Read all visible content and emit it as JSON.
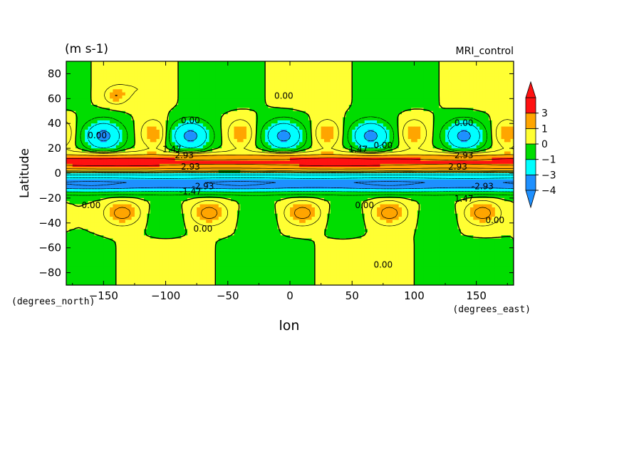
{
  "chart_data": {
    "type": "heatmap",
    "title": "",
    "units_label": "(m s-1)",
    "experiment_label": "MRI_control",
    "xlabel": "lon",
    "ylabel": "Latitude",
    "x_units": "(degrees_east)",
    "y_units": "(degrees_north)",
    "xlim": [
      -180,
      180
    ],
    "ylim": [
      -90,
      90
    ],
    "x_ticks": [
      -150,
      -100,
      -50,
      0,
      50,
      100,
      150
    ],
    "y_ticks": [
      -80,
      -60,
      -40,
      -20,
      0,
      20,
      40,
      60,
      80
    ],
    "x_tick_labels": [
      "−150",
      "−100",
      "−50",
      "0",
      "50",
      "100",
      "150"
    ],
    "y_tick_labels": [
      "−80",
      "−60",
      "−40",
      "−20",
      "0",
      "20",
      "40",
      "60",
      "80"
    ],
    "colorbar": {
      "levels": [
        -4,
        -3,
        -1,
        0,
        1,
        3
      ],
      "level_labels": [
        "−4",
        "−3",
        "−1",
        "0",
        "1",
        "3"
      ],
      "colors": [
        "#1e90ff",
        "#00ffff",
        "#00dd00",
        "#ffff33",
        "#ffa500",
        "#ff1111"
      ],
      "extend": "both"
    },
    "contour_labels": [
      {
        "text": "0.00",
        "lon": -5,
        "lat": 60
      },
      {
        "text": "0.00",
        "lon": -80,
        "lat": 40
      },
      {
        "text": "0.00",
        "lon": -155,
        "lat": 28
      },
      {
        "text": "0.00",
        "lon": 75,
        "lat": 20
      },
      {
        "text": "0.00",
        "lon": 140,
        "lat": 38
      },
      {
        "text": "1.47",
        "lon": -95,
        "lat": 17
      },
      {
        "text": "2.93",
        "lon": -85,
        "lat": 12
      },
      {
        "text": "1.47",
        "lon": 55,
        "lat": 17
      },
      {
        "text": "2.93",
        "lon": 140,
        "lat": 12
      },
      {
        "text": "2.93",
        "lon": -80,
        "lat": 3
      },
      {
        "text": "2.93",
        "lon": 135,
        "lat": 3
      },
      {
        "text": "-1.47",
        "lon": -80,
        "lat": -17
      },
      {
        "text": "-2.93",
        "lon": -70,
        "lat": -13
      },
      {
        "text": "1.47",
        "lon": 140,
        "lat": -23
      },
      {
        "text": "-2.93",
        "lon": 155,
        "lat": -13
      },
      {
        "text": "0.00",
        "lon": -160,
        "lat": -28
      },
      {
        "text": "0.00",
        "lon": -70,
        "lat": -47
      },
      {
        "text": "0.00",
        "lon": 60,
        "lat": -28
      },
      {
        "text": "0.00",
        "lon": 165,
        "lat": -40
      },
      {
        "text": "0.00",
        "lon": 75,
        "lat": -76
      }
    ]
  }
}
